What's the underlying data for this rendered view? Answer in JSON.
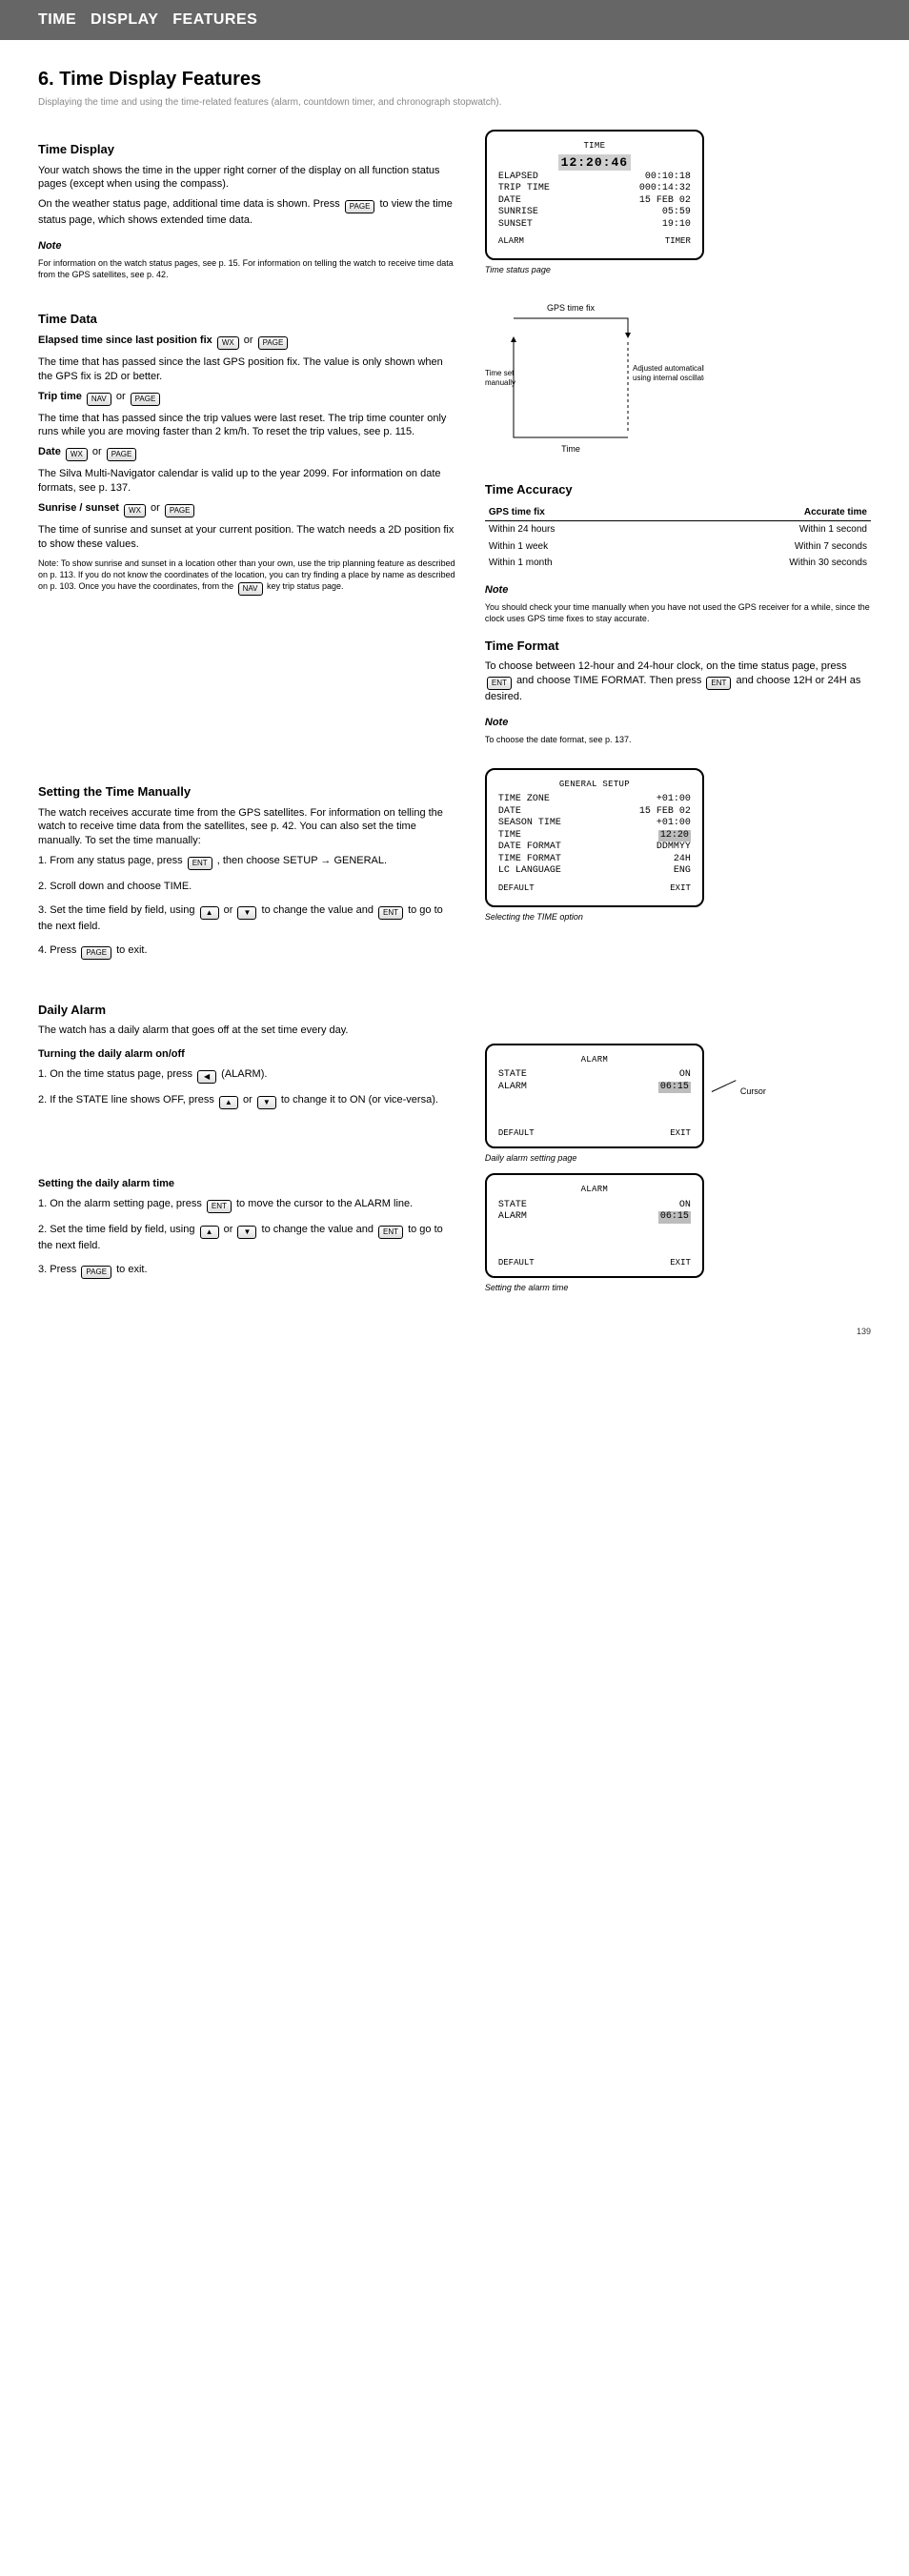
{
  "banner": "TIME   DISPLAY   FEATURES",
  "pagenum": "139",
  "section": {
    "title": "6. Time Display Features",
    "sub": "Displaying the time and using the time-related features (alarm, countdown timer, and chronograph stopwatch)."
  },
  "time": {
    "h2": "Time Display",
    "p1": "Your watch shows the time in the upper right corner of the display on all function status pages (except when using the compass).",
    "p2_a": "On the weather status page, additional time data is shown. Press ",
    "p2_b": " to view the time status page, which shows extended time data.",
    "note_head": "Note",
    "note_body": "For information on the watch status pages, see p. 15. For information on telling the watch to receive time data from the GPS satellites, see p. 42."
  },
  "lcd1": {
    "title": "TIME",
    "row_clock": "12:20:46",
    "row_elapsed_l": "ELAPSED",
    "row_elapsed_r": "00:10:18",
    "row_trip_l": "TRIP TIME",
    "row_trip_r": "000:14:32",
    "row_date_l": "DATE",
    "row_date_r": "15 FEB 02",
    "row_sun_l": "SUNRISE",
    "row_sun_r": "05:59",
    "row_set_l": "SUNSET",
    "row_set_r": "19:10",
    "soft_l": "ALARM",
    "soft_r": "TIMER",
    "caption": "Time status page"
  },
  "data": {
    "h2": "Time Data",
    "elapsed_head": "Elapsed time since last position fix",
    "elapsed_keys_a": " or ",
    "elapsed_body": "The time that has passed since the last GPS position fix. The value is only shown when the GPS fix is 2D or better.",
    "trip_head": "Trip time",
    "trip_keys_a": " or ",
    "trip_keys_b": " or ",
    "trip_body_a": "The time that has passed since the trip values were last reset. The trip time counter only runs while you are moving faster than 2 km/h. To reset the trip values, see p. 115.",
    "date_head": "Date",
    "date_key_a": " or ",
    "date_body": "The Silva Multi-Navigator calendar is valid up to the year 2099. For information on date formats, see p. 137.",
    "sun_head": "Sunrise / sunset",
    "sun_key_a": " or ",
    "sun_body_a": "The time of sunrise and sunset at your current position. The watch needs a 2D position fix to show these values.",
    "sun_body_b_a": "Note: To show sunrise and sunset in a location other than your own, use the trip planning feature as described on p. 113. If you do not know the coordinates of the location, you can try finding a place by name as described on p. 103. Once you have the coordinates, from the ",
    "sun_body_b_key": "",
    "sun_body_b_b": " key trip status page."
  },
  "diagram": {
    "top": "GPS time fix",
    "left": "Time set manually",
    "right": "Adjusted automatically\nusing internal oscillator",
    "bottom": "Time"
  },
  "acc": {
    "h2": "Time Accuracy",
    "rows": [
      [
        "GPS time fix",
        "Accurate time"
      ],
      [
        "Within 24 hours",
        "Within 1 second"
      ],
      [
        "Within 1 week",
        "Within 7 seconds"
      ],
      [
        "Within 1 month",
        "Within 30 seconds"
      ]
    ],
    "note_head": "Note",
    "note_body": "You should check your time manually when you have not used the GPS receiver for a while, since the clock uses GPS time fixes to stay accurate."
  },
  "format": {
    "h2": "Time Format",
    "body_a": "To choose between 12-hour and 24-hour clock, on the time status page, press ",
    "body_b": " and choose TIME FORMAT. Then press ",
    "body_c": " and choose 12H or 24H as desired.",
    "note_head": "Note",
    "note_body": "To choose the date format, see p. 137."
  },
  "settime": {
    "h2": "Setting the Time Manually",
    "intro": "The watch receives accurate time from the GPS satellites. For information on telling the watch to receive time data from the satellites, see p. 42. You can also set the time manually. To set the time manually:",
    "lcd": {
      "title": "GENERAL SETUP",
      "rows_l": [
        "TIME ZONE",
        "DATE",
        "SEASON TIME",
        "TIME",
        "DATE FORMAT",
        "TIME FORMAT",
        "LC LANGUAGE"
      ],
      "rows_r": [
        "+01:00",
        "15 FEB 02",
        "+01:00",
        "12:20",
        "DDMMYY",
        "24H",
        "ENG"
      ],
      "hl_index": 3,
      "soft_l": "DEFAULT",
      "soft_r": "EXIT",
      "caption": "Selecting the TIME option"
    },
    "s1_a": "1. From any status page, press ",
    "s1_b": ", then choose SETUP → GENERAL.",
    "s2": "2. Scroll down and choose TIME.",
    "s3_a": "3. Set the time field by field, using ",
    "s3_b": " or ",
    "s3_c": " to change the value and ",
    "s3_d": " to go to the next field.",
    "s4_a": "4. Press ",
    "s4_b": " to exit."
  },
  "alarm": {
    "h2": "Daily Alarm",
    "intro": "The watch has a daily alarm that goes off at the set time every day.",
    "on_off_h": "Turning the daily alarm on/off",
    "on_lcd": {
      "title": "ALARM",
      "rows": [
        [
          "STATE",
          "ON"
        ],
        [
          "ALARM",
          "06:15"
        ]
      ],
      "hl": "06:15",
      "soft_l": "DEFAULT",
      "soft_r": "EXIT",
      "caption": "Daily alarm setting page",
      "cursor_label": "Cursor"
    },
    "on_s1_a": "1. On the time status page, press ",
    "on_s1_b": " (ALARM).",
    "on_s2_a": "2. If the STATE line shows OFF, press ",
    "on_s2_b": " or ",
    "on_s2_c": " to change it to ON (or vice-versa).",
    "set_h": "Setting the daily alarm time",
    "set_s1_a": "1. On the alarm setting page, press ",
    "set_s1_b": " to move the cursor to the ALARM line.",
    "set_s2_a": "2. Set the time field by field, using ",
    "set_s2_b": " or ",
    "set_s2_c": " to change the value and ",
    "set_s2_d": " to go to the next field.",
    "set_s3_a": "3. Press ",
    "set_s3_b": " to exit.",
    "set_lcd": {
      "title": "ALARM",
      "rows": [
        [
          "STATE",
          "ON"
        ],
        [
          "ALARM",
          "06:15"
        ]
      ],
      "hl": "06:15",
      "soft_l": "DEFAULT",
      "soft_r": "EXIT",
      "caption": "Setting the alarm time"
    }
  }
}
